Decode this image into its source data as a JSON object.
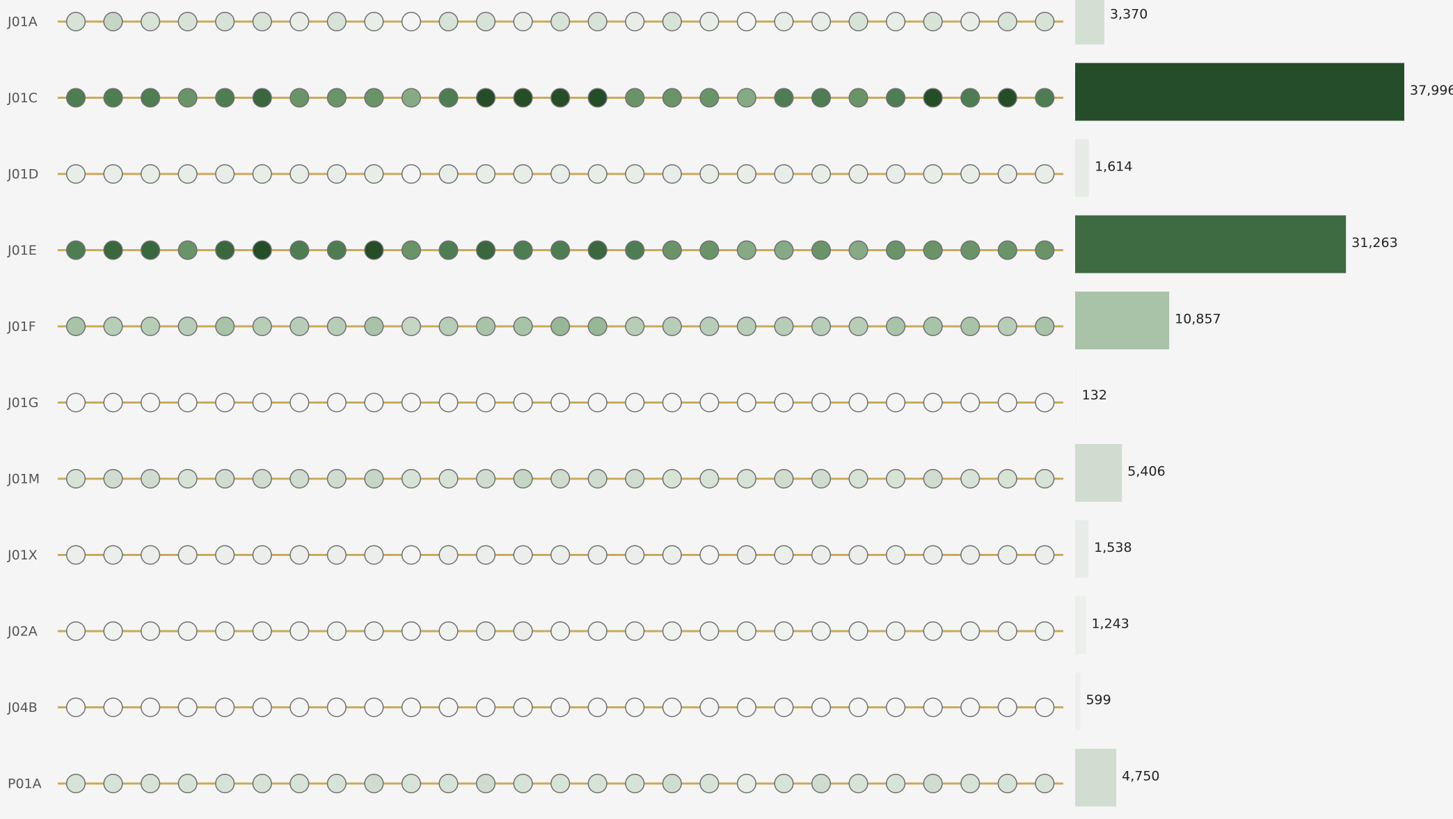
{
  "chart_data": {
    "type": "dot_bar",
    "categories": [
      "J01A",
      "J01C",
      "J01D",
      "J01E",
      "J01F",
      "J01G",
      "J01M",
      "J01X",
      "J02A",
      "J04B",
      "P01A"
    ],
    "values": [
      3370,
      37996,
      1614,
      31263,
      10857,
      132,
      5406,
      1538,
      1243,
      599,
      4750
    ],
    "value_labels": [
      "3,370",
      "37,996",
      "1,614",
      "31,263",
      "10,857",
      "132",
      "5,406",
      "1,538",
      "1,243",
      "599",
      "4,750"
    ],
    "bar_colors": [
      "#d3dfd3",
      "#264d2a",
      "#e6ebe6",
      "#3e6b42",
      "#a8c3a8",
      "#f0f0f0",
      "#cfdccf",
      "#e8ece8",
      "#ebeeeb",
      "#eeeeee",
      "#d1ddd1"
    ],
    "line_color": "#c8aa5c",
    "dot_colors": [
      [
        "#d8e3d7",
        "#c5d6c4",
        "#d8e3d7",
        "#d8e3d7",
        "#d8e3d7",
        "#d8e3d7",
        "#e8ede8",
        "#d8e3d7",
        "#e8ede8",
        "#f4f4f4",
        "#d8e3d7",
        "#d8e3d7",
        "#e8ede8",
        "#d8e3d7",
        "#d8e3d7",
        "#e8ede8",
        "#d8e3d7",
        "#e8ede8",
        "#f4f4f4",
        "#e8ede8",
        "#e8ede8",
        "#d8e3d7",
        "#e8ede8",
        "#d8e3d7",
        "#e8ede8",
        "#d8e3d7",
        "#d8e3d7"
      ],
      [
        "#4f7d53",
        "#4f7d53",
        "#4f7d53",
        "#6a9468",
        "#4f7d53",
        "#3a673e",
        "#6a9468",
        "#6a9468",
        "#6a9468",
        "#86aa85",
        "#4f7d53",
        "#254d28",
        "#254d28",
        "#254d28",
        "#254d28",
        "#6a9468",
        "#6a9468",
        "#6a9468",
        "#86aa85",
        "#4f7d53",
        "#4f7d53",
        "#6a9468",
        "#4f7d53",
        "#254d28",
        "#4f7d53",
        "#254d28",
        "#4f7d53"
      ],
      [
        "#e8ede8",
        "#e8ede8",
        "#e8ede8",
        "#e8ede8",
        "#e8ede8",
        "#e8ede8",
        "#e8ede8",
        "#e8ede8",
        "#e8ede8",
        "#f4f4f4",
        "#e8ede8",
        "#e8ede8",
        "#e8ede8",
        "#e8ede8",
        "#e8ede8",
        "#e8ede8",
        "#e8ede8",
        "#e8ede8",
        "#e8ede8",
        "#e8ede8",
        "#e8ede8",
        "#e8ede8",
        "#e8ede8",
        "#e8ede8",
        "#e8ede8",
        "#e8ede8",
        "#e8ede8"
      ],
      [
        "#4f7d53",
        "#3a673e",
        "#3a673e",
        "#6a9468",
        "#3a673e",
        "#254d28",
        "#4f7d53",
        "#4f7d53",
        "#254d28",
        "#6a9468",
        "#4f7d53",
        "#3a673e",
        "#4f7d53",
        "#4f7d53",
        "#3a673e",
        "#4f7d53",
        "#6a9468",
        "#6a9468",
        "#86aa85",
        "#86aa85",
        "#6a9468",
        "#86aa85",
        "#6a9468",
        "#6a9468",
        "#6a9468",
        "#6a9468",
        "#6a9468"
      ],
      [
        "#a8c3a8",
        "#b8cdb7",
        "#b8cdb7",
        "#b8cdb7",
        "#a8c3a8",
        "#b8cdb7",
        "#b8cdb7",
        "#b8cdb7",
        "#a8c3a8",
        "#c5d6c4",
        "#b8cdb7",
        "#a8c3a8",
        "#a8c3a8",
        "#97b796",
        "#97b796",
        "#b8cdb7",
        "#b8cdb7",
        "#b8cdb7",
        "#b8cdb7",
        "#b8cdb7",
        "#b8cdb7",
        "#b8cdb7",
        "#a8c3a8",
        "#a8c3a8",
        "#a8c3a8",
        "#b8cdb7",
        "#a8c3a8"
      ],
      [
        "#f4f4f4",
        "#f4f4f4",
        "#f4f4f4",
        "#f4f4f4",
        "#f4f4f4",
        "#f4f4f4",
        "#f4f4f4",
        "#f4f4f4",
        "#f4f4f4",
        "#f4f4f4",
        "#f4f4f4",
        "#f4f4f4",
        "#f4f4f4",
        "#f4f4f4",
        "#f4f4f4",
        "#f4f4f4",
        "#f4f4f4",
        "#f4f4f4",
        "#f4f4f4",
        "#f4f4f4",
        "#f4f4f4",
        "#f4f4f4",
        "#f4f4f4",
        "#f4f4f4",
        "#f4f4f4",
        "#f4f4f4",
        "#f4f4f4"
      ],
      [
        "#d8e3d7",
        "#d0dccf",
        "#d0dccf",
        "#d8e3d7",
        "#d0dccf",
        "#d0dccf",
        "#d0dccf",
        "#d0dccf",
        "#c5d6c4",
        "#d8e3d7",
        "#d8e3d7",
        "#d0dccf",
        "#c5d6c4",
        "#d0dccf",
        "#d0dccf",
        "#d0dccf",
        "#d8e3d7",
        "#d8e3d7",
        "#d8e3d7",
        "#d0dccf",
        "#d0dccf",
        "#d8e3d7",
        "#d8e3d7",
        "#d0dccf",
        "#d8e3d7",
        "#d8e3d7",
        "#d8e3d7"
      ],
      [
        "#ebeeeb",
        "#ebeeeb",
        "#ebeeeb",
        "#ebeeeb",
        "#ebeeeb",
        "#ebeeeb",
        "#ebeeeb",
        "#ebeeeb",
        "#ebeeeb",
        "#f4f4f4",
        "#ebeeeb",
        "#ebeeeb",
        "#ebeeeb",
        "#ebeeeb",
        "#ebeeeb",
        "#ebeeeb",
        "#ebeeeb",
        "#f4f4f4",
        "#ebeeeb",
        "#ebeeeb",
        "#ebeeeb",
        "#ebeeeb",
        "#ebeeeb",
        "#ebeeeb",
        "#ebeeeb",
        "#ebeeeb",
        "#ebeeeb"
      ],
      [
        "#f0f2f0",
        "#f0f2f0",
        "#f0f2f0",
        "#f0f2f0",
        "#f0f2f0",
        "#f0f2f0",
        "#f0f2f0",
        "#f0f2f0",
        "#f0f2f0",
        "#f4f4f4",
        "#f0f2f0",
        "#ebeeeb",
        "#ebeeeb",
        "#f0f2f0",
        "#f0f2f0",
        "#f0f2f0",
        "#f0f2f0",
        "#f0f2f0",
        "#f0f2f0",
        "#f0f2f0",
        "#f0f2f0",
        "#f0f2f0",
        "#f0f2f0",
        "#f0f2f0",
        "#f0f2f0",
        "#f0f2f0",
        "#f0f2f0"
      ],
      [
        "#f4f4f4",
        "#f4f4f4",
        "#f4f4f4",
        "#f4f4f4",
        "#f4f4f4",
        "#f4f4f4",
        "#f4f4f4",
        "#f4f4f4",
        "#f4f4f4",
        "#f4f4f4",
        "#f4f4f4",
        "#f4f4f4",
        "#f4f4f4",
        "#f4f4f4",
        "#f4f4f4",
        "#f4f4f4",
        "#f4f4f4",
        "#f4f4f4",
        "#f4f4f4",
        "#f4f4f4",
        "#f4f4f4",
        "#f4f4f4",
        "#f4f4f4",
        "#f4f4f4",
        "#f4f4f4",
        "#f4f4f4",
        "#f4f4f4"
      ],
      [
        "#d8e3d7",
        "#d8e3d7",
        "#d8e3d7",
        "#d8e3d7",
        "#d8e3d7",
        "#d8e3d7",
        "#d8e3d7",
        "#d8e3d7",
        "#d0dccf",
        "#d8e3d7",
        "#d8e3d7",
        "#d0dccf",
        "#d8e3d7",
        "#d8e3d7",
        "#d8e3d7",
        "#d8e3d7",
        "#d0dccf",
        "#d8e3d7",
        "#e8ede8",
        "#d8e3d7",
        "#d0dccf",
        "#d8e3d7",
        "#d8e3d7",
        "#d0dccf",
        "#d8e3d7",
        "#d8e3d7",
        "#d8e3d7"
      ]
    ]
  }
}
